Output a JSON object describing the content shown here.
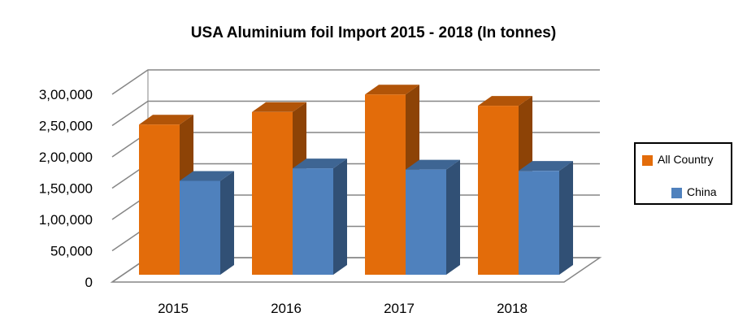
{
  "chart_data": {
    "type": "bar",
    "title": "USA Aluminium foil Import  2015 - 2018 (In tonnes)",
    "categories": [
      "2015",
      "2016",
      "2017",
      "2018"
    ],
    "series": [
      {
        "name": "All Country",
        "values": [
          240000,
          260000,
          288000,
          270000
        ],
        "color": "#E36C0A"
      },
      {
        "name": "China",
        "values": [
          150000,
          170000,
          168000,
          166000
        ],
        "color": "#4F81BD"
      }
    ],
    "ylim": [
      0,
      300000
    ],
    "yticks": [
      "0",
      "50,000",
      "1,00,000",
      "1,50,000",
      "2,00,000",
      "2,50,000",
      "3,00,000"
    ],
    "grid": true,
    "legend_position": "right",
    "style": "3d-clustered-column"
  }
}
